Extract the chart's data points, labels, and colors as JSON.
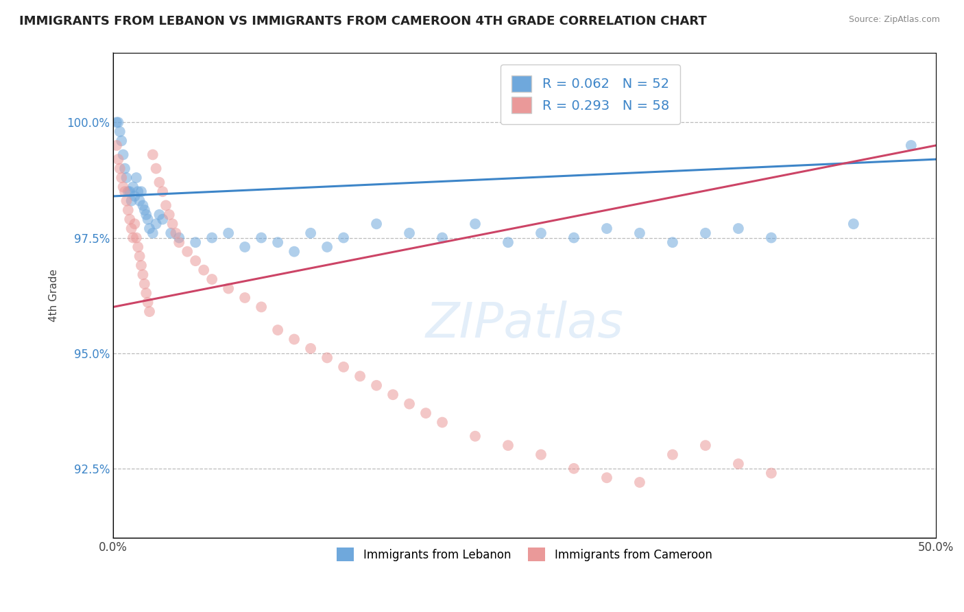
{
  "title": "IMMIGRANTS FROM LEBANON VS IMMIGRANTS FROM CAMEROON 4TH GRADE CORRELATION CHART",
  "source": "Source: ZipAtlas.com",
  "ylabel": "4th Grade",
  "xlim": [
    0.0,
    50.0
  ],
  "ylim": [
    91.0,
    101.5
  ],
  "yticks": [
    92.5,
    95.0,
    97.5,
    100.0
  ],
  "ytick_labels": [
    "92.5%",
    "95.0%",
    "97.5%",
    "100.0%"
  ],
  "legend_blue_label": "Immigrants from Lebanon",
  "legend_pink_label": "Immigrants from Cameroon",
  "R_blue": 0.062,
  "N_blue": 52,
  "R_pink": 0.293,
  "N_pink": 58,
  "blue_color": "#6fa8dc",
  "pink_color": "#ea9999",
  "blue_line_color": "#3d85c8",
  "pink_line_color": "#cc4466",
  "background_color": "#ffffff",
  "blue_scatter_x": [
    0.2,
    0.3,
    0.4,
    0.5,
    0.6,
    0.7,
    0.8,
    0.9,
    1.0,
    1.1,
    1.2,
    1.3,
    1.4,
    1.5,
    1.6,
    1.7,
    1.8,
    1.9,
    2.0,
    2.1,
    2.2,
    2.4,
    2.6,
    2.8,
    3.0,
    3.5,
    4.0,
    5.0,
    6.0,
    7.0,
    8.0,
    9.0,
    10.0,
    11.0,
    12.0,
    13.0,
    14.0,
    16.0,
    18.0,
    20.0,
    22.0,
    24.0,
    26.0,
    28.0,
    30.0,
    32.0,
    34.0,
    36.0,
    38.0,
    40.0,
    45.0,
    48.5
  ],
  "blue_scatter_y": [
    100.0,
    100.0,
    99.8,
    99.6,
    99.3,
    99.0,
    98.8,
    98.5,
    98.5,
    98.3,
    98.6,
    98.4,
    98.8,
    98.5,
    98.3,
    98.5,
    98.2,
    98.1,
    98.0,
    97.9,
    97.7,
    97.6,
    97.8,
    98.0,
    97.9,
    97.6,
    97.5,
    97.4,
    97.5,
    97.6,
    97.3,
    97.5,
    97.4,
    97.2,
    97.6,
    97.3,
    97.5,
    97.8,
    97.6,
    97.5,
    97.8,
    97.4,
    97.6,
    97.5,
    97.7,
    97.6,
    97.4,
    97.6,
    97.7,
    97.5,
    97.8,
    99.5
  ],
  "pink_scatter_x": [
    0.2,
    0.3,
    0.4,
    0.5,
    0.6,
    0.7,
    0.8,
    0.9,
    1.0,
    1.1,
    1.2,
    1.3,
    1.4,
    1.5,
    1.6,
    1.7,
    1.8,
    1.9,
    2.0,
    2.1,
    2.2,
    2.4,
    2.6,
    2.8,
    3.0,
    3.2,
    3.4,
    3.6,
    3.8,
    4.0,
    4.5,
    5.0,
    5.5,
    6.0,
    7.0,
    8.0,
    9.0,
    10.0,
    11.0,
    12.0,
    13.0,
    14.0,
    15.0,
    16.0,
    17.0,
    18.0,
    19.0,
    20.0,
    22.0,
    24.0,
    26.0,
    28.0,
    30.0,
    32.0,
    34.0,
    36.0,
    38.0,
    40.0
  ],
  "pink_scatter_y": [
    99.5,
    99.2,
    99.0,
    98.8,
    98.6,
    98.5,
    98.3,
    98.1,
    97.9,
    97.7,
    97.5,
    97.8,
    97.5,
    97.3,
    97.1,
    96.9,
    96.7,
    96.5,
    96.3,
    96.1,
    95.9,
    99.3,
    99.0,
    98.7,
    98.5,
    98.2,
    98.0,
    97.8,
    97.6,
    97.4,
    97.2,
    97.0,
    96.8,
    96.6,
    96.4,
    96.2,
    96.0,
    95.5,
    95.3,
    95.1,
    94.9,
    94.7,
    94.5,
    94.3,
    94.1,
    93.9,
    93.7,
    93.5,
    93.2,
    93.0,
    92.8,
    92.5,
    92.3,
    92.2,
    92.8,
    93.0,
    92.6,
    92.4
  ],
  "blue_trend_x0": 0.0,
  "blue_trend_x1": 50.0,
  "blue_trend_y0": 98.4,
  "blue_trend_y1": 99.2,
  "pink_trend_x0": 0.0,
  "pink_trend_x1": 50.0,
  "pink_trend_y0": 96.0,
  "pink_trend_y1": 99.5
}
